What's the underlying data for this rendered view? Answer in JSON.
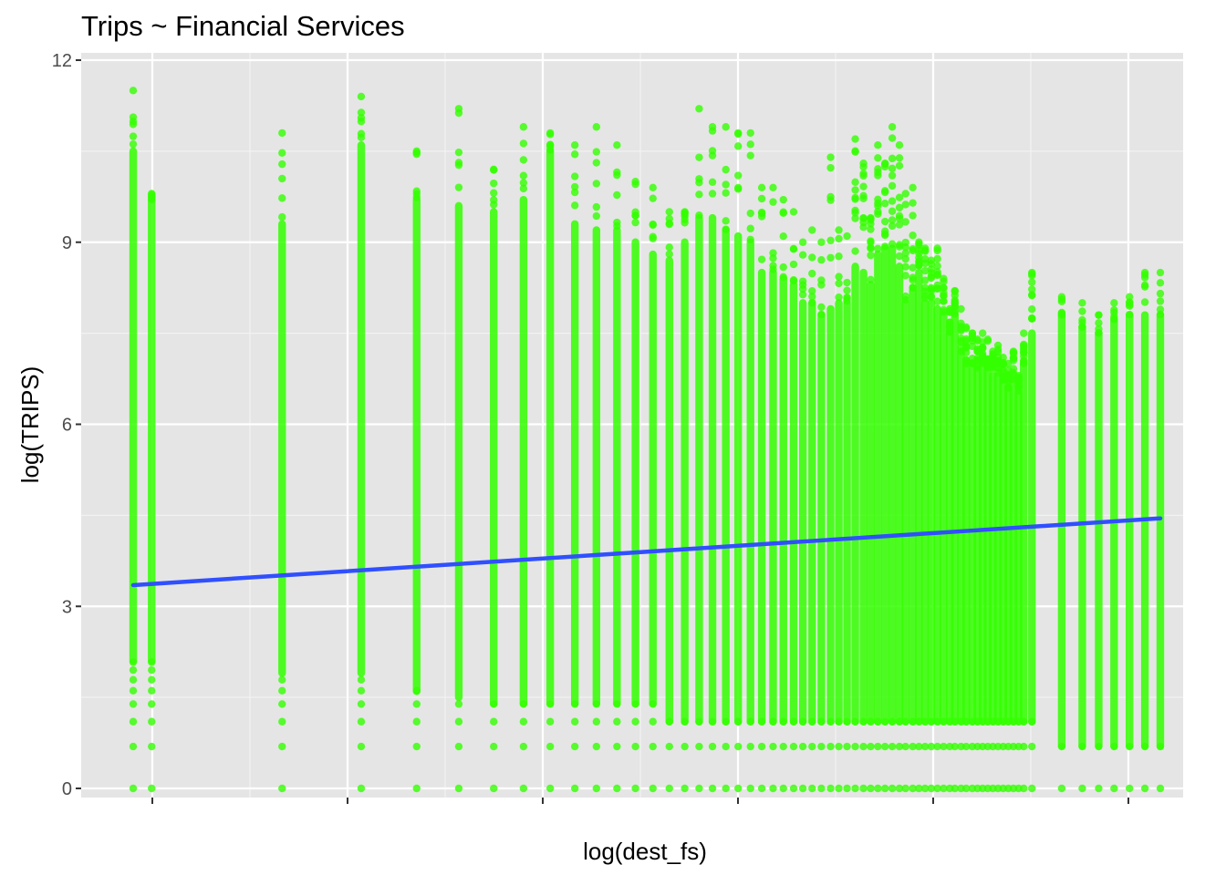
{
  "chart_data": {
    "type": "scatter",
    "title": "Trips ~ Financial Services",
    "xlabel": "log(dest_fs)",
    "ylabel": "log(TRIPS)",
    "ylim": [
      -0.15,
      12
    ],
    "yticks": [
      0,
      3,
      6,
      9,
      12
    ],
    "ytick_labels": [
      "0",
      "3",
      "6",
      "9",
      "12"
    ],
    "xticks_labeled": false,
    "grid": true,
    "legend": "none",
    "point_color": "#33ff00",
    "line_color": "#3050ff",
    "panel_background": "#e5e5e5",
    "fit_line": {
      "x": [
        0.0,
        1.0
      ],
      "y": [
        3.35,
        4.45
      ]
    },
    "columns": [
      {
        "x": 0.0,
        "max": 11.5,
        "dense": 10.5,
        "min": 2.1
      },
      {
        "x": 0.018,
        "max": 9.8,
        "dense": 9.7,
        "min": 2.1
      },
      {
        "x": 0.145,
        "max": 10.8,
        "dense": 9.3,
        "min": 1.9
      },
      {
        "x": 0.222,
        "max": 11.4,
        "dense": 10.6,
        "min": 1.9
      },
      {
        "x": 0.276,
        "max": 10.5,
        "dense": 9.7,
        "min": 1.6
      },
      {
        "x": 0.317,
        "max": 11.2,
        "dense": 9.6,
        "min": 1.5
      },
      {
        "x": 0.351,
        "max": 10.2,
        "dense": 9.5,
        "min": 1.4
      },
      {
        "x": 0.38,
        "max": 10.9,
        "dense": 9.7,
        "min": 1.4
      },
      {
        "x": 0.406,
        "max": 10.8,
        "dense": 10.5,
        "min": 1.4
      },
      {
        "x": 0.43,
        "max": 10.6,
        "dense": 9.3,
        "min": 1.4
      },
      {
        "x": 0.451,
        "max": 10.9,
        "dense": 9.2,
        "min": 1.4
      },
      {
        "x": 0.471,
        "max": 10.6,
        "dense": 9.2,
        "min": 1.4
      },
      {
        "x": 0.489,
        "max": 10.0,
        "dense": 9.0,
        "min": 1.4
      },
      {
        "x": 0.506,
        "max": 9.9,
        "dense": 8.8,
        "min": 1.4
      },
      {
        "x": 0.522,
        "max": 9.5,
        "dense": 8.7,
        "min": 1.1
      },
      {
        "x": 0.537,
        "max": 9.5,
        "dense": 9.0,
        "min": 1.1
      },
      {
        "x": 0.551,
        "max": 11.2,
        "dense": 9.4,
        "min": 1.1
      },
      {
        "x": 0.564,
        "max": 10.9,
        "dense": 9.4,
        "min": 1.1
      },
      {
        "x": 0.577,
        "max": 10.9,
        "dense": 9.2,
        "min": 1.1
      },
      {
        "x": 0.589,
        "max": 10.8,
        "dense": 9.1,
        "min": 1.1
      },
      {
        "x": 0.601,
        "max": 10.8,
        "dense": 9.0,
        "min": 1.1
      },
      {
        "x": 0.612,
        "max": 9.9,
        "dense": 8.5,
        "min": 1.1
      },
      {
        "x": 0.623,
        "max": 9.9,
        "dense": 8.5,
        "min": 1.1
      },
      {
        "x": 0.633,
        "max": 9.7,
        "dense": 8.4,
        "min": 1.1
      },
      {
        "x": 0.643,
        "max": 9.5,
        "dense": 8.3,
        "min": 1.1
      },
      {
        "x": 0.652,
        "max": 9.0,
        "dense": 8.0,
        "min": 1.1
      },
      {
        "x": 0.661,
        "max": 9.2,
        "dense": 8.0,
        "min": 1.1
      },
      {
        "x": 0.67,
        "max": 9.0,
        "dense": 7.8,
        "min": 1.1
      },
      {
        "x": 0.679,
        "max": 10.4,
        "dense": 7.9,
        "min": 1.1
      },
      {
        "x": 0.687,
        "max": 9.2,
        "dense": 8.0,
        "min": 1.1
      },
      {
        "x": 0.695,
        "max": 9.1,
        "dense": 8.0,
        "min": 1.1
      },
      {
        "x": 0.703,
        "max": 10.7,
        "dense": 8.6,
        "min": 1.1
      },
      {
        "x": 0.711,
        "max": 10.3,
        "dense": 8.5,
        "min": 1.1
      },
      {
        "x": 0.718,
        "max": 9.4,
        "dense": 8.3,
        "min": 1.1
      },
      {
        "x": 0.725,
        "max": 10.6,
        "dense": 8.8,
        "min": 1.1
      },
      {
        "x": 0.732,
        "max": 10.3,
        "dense": 8.9,
        "min": 1.1
      },
      {
        "x": 0.739,
        "max": 10.9,
        "dense": 8.9,
        "min": 1.1
      },
      {
        "x": 0.746,
        "max": 10.6,
        "dense": 8.6,
        "min": 1.1
      },
      {
        "x": 0.752,
        "max": 9.8,
        "dense": 8.0,
        "min": 1.1
      },
      {
        "x": 0.759,
        "max": 9.9,
        "dense": 8.2,
        "min": 1.1
      },
      {
        "x": 0.765,
        "max": 9.0,
        "dense": 8.5,
        "min": 1.1
      },
      {
        "x": 0.771,
        "max": 8.9,
        "dense": 8.0,
        "min": 1.1
      },
      {
        "x": 0.777,
        "max": 8.7,
        "dense": 8.0,
        "min": 1.1
      },
      {
        "x": 0.783,
        "max": 8.9,
        "dense": 7.9,
        "min": 1.1
      },
      {
        "x": 0.789,
        "max": 8.4,
        "dense": 7.8,
        "min": 1.1
      },
      {
        "x": 0.795,
        "max": 7.9,
        "dense": 7.5,
        "min": 1.1
      },
      {
        "x": 0.8,
        "max": 8.2,
        "dense": 7.8,
        "min": 1.1
      },
      {
        "x": 0.806,
        "max": 7.9,
        "dense": 7.2,
        "min": 1.1
      },
      {
        "x": 0.811,
        "max": 7.6,
        "dense": 7.0,
        "min": 1.1
      },
      {
        "x": 0.817,
        "max": 7.5,
        "dense": 7.0,
        "min": 1.1
      },
      {
        "x": 0.822,
        "max": 7.4,
        "dense": 6.9,
        "min": 1.1
      },
      {
        "x": 0.827,
        "max": 7.5,
        "dense": 7.0,
        "min": 1.1
      },
      {
        "x": 0.832,
        "max": 7.4,
        "dense": 6.9,
        "min": 1.1
      },
      {
        "x": 0.837,
        "max": 7.2,
        "dense": 6.8,
        "min": 1.1
      },
      {
        "x": 0.842,
        "max": 7.3,
        "dense": 6.8,
        "min": 1.1
      },
      {
        "x": 0.847,
        "max": 7.1,
        "dense": 6.7,
        "min": 1.1
      },
      {
        "x": 0.852,
        "max": 7.0,
        "dense": 6.6,
        "min": 1.1
      },
      {
        "x": 0.857,
        "max": 7.2,
        "dense": 6.7,
        "min": 1.1
      },
      {
        "x": 0.862,
        "max": 6.8,
        "dense": 6.5,
        "min": 1.1
      },
      {
        "x": 0.867,
        "max": 7.5,
        "dense": 7.0,
        "min": 1.1
      },
      {
        "x": 0.875,
        "max": 8.5,
        "dense": 7.5,
        "min": 1.1
      },
      {
        "x": 0.904,
        "max": 8.1,
        "dense": 7.8,
        "min": 0.7
      },
      {
        "x": 0.924,
        "max": 8.0,
        "dense": 7.6,
        "min": 0.7
      },
      {
        "x": 0.94,
        "max": 7.8,
        "dense": 7.5,
        "min": 0.7
      },
      {
        "x": 0.955,
        "max": 8.0,
        "dense": 7.7,
        "min": 0.7
      },
      {
        "x": 0.97,
        "max": 8.1,
        "dense": 7.8,
        "min": 0.7
      },
      {
        "x": 0.985,
        "max": 8.5,
        "dense": 7.8,
        "min": 0.7
      },
      {
        "x": 1.0,
        "max": 8.5,
        "dense": 7.8,
        "min": 0.7
      }
    ]
  }
}
